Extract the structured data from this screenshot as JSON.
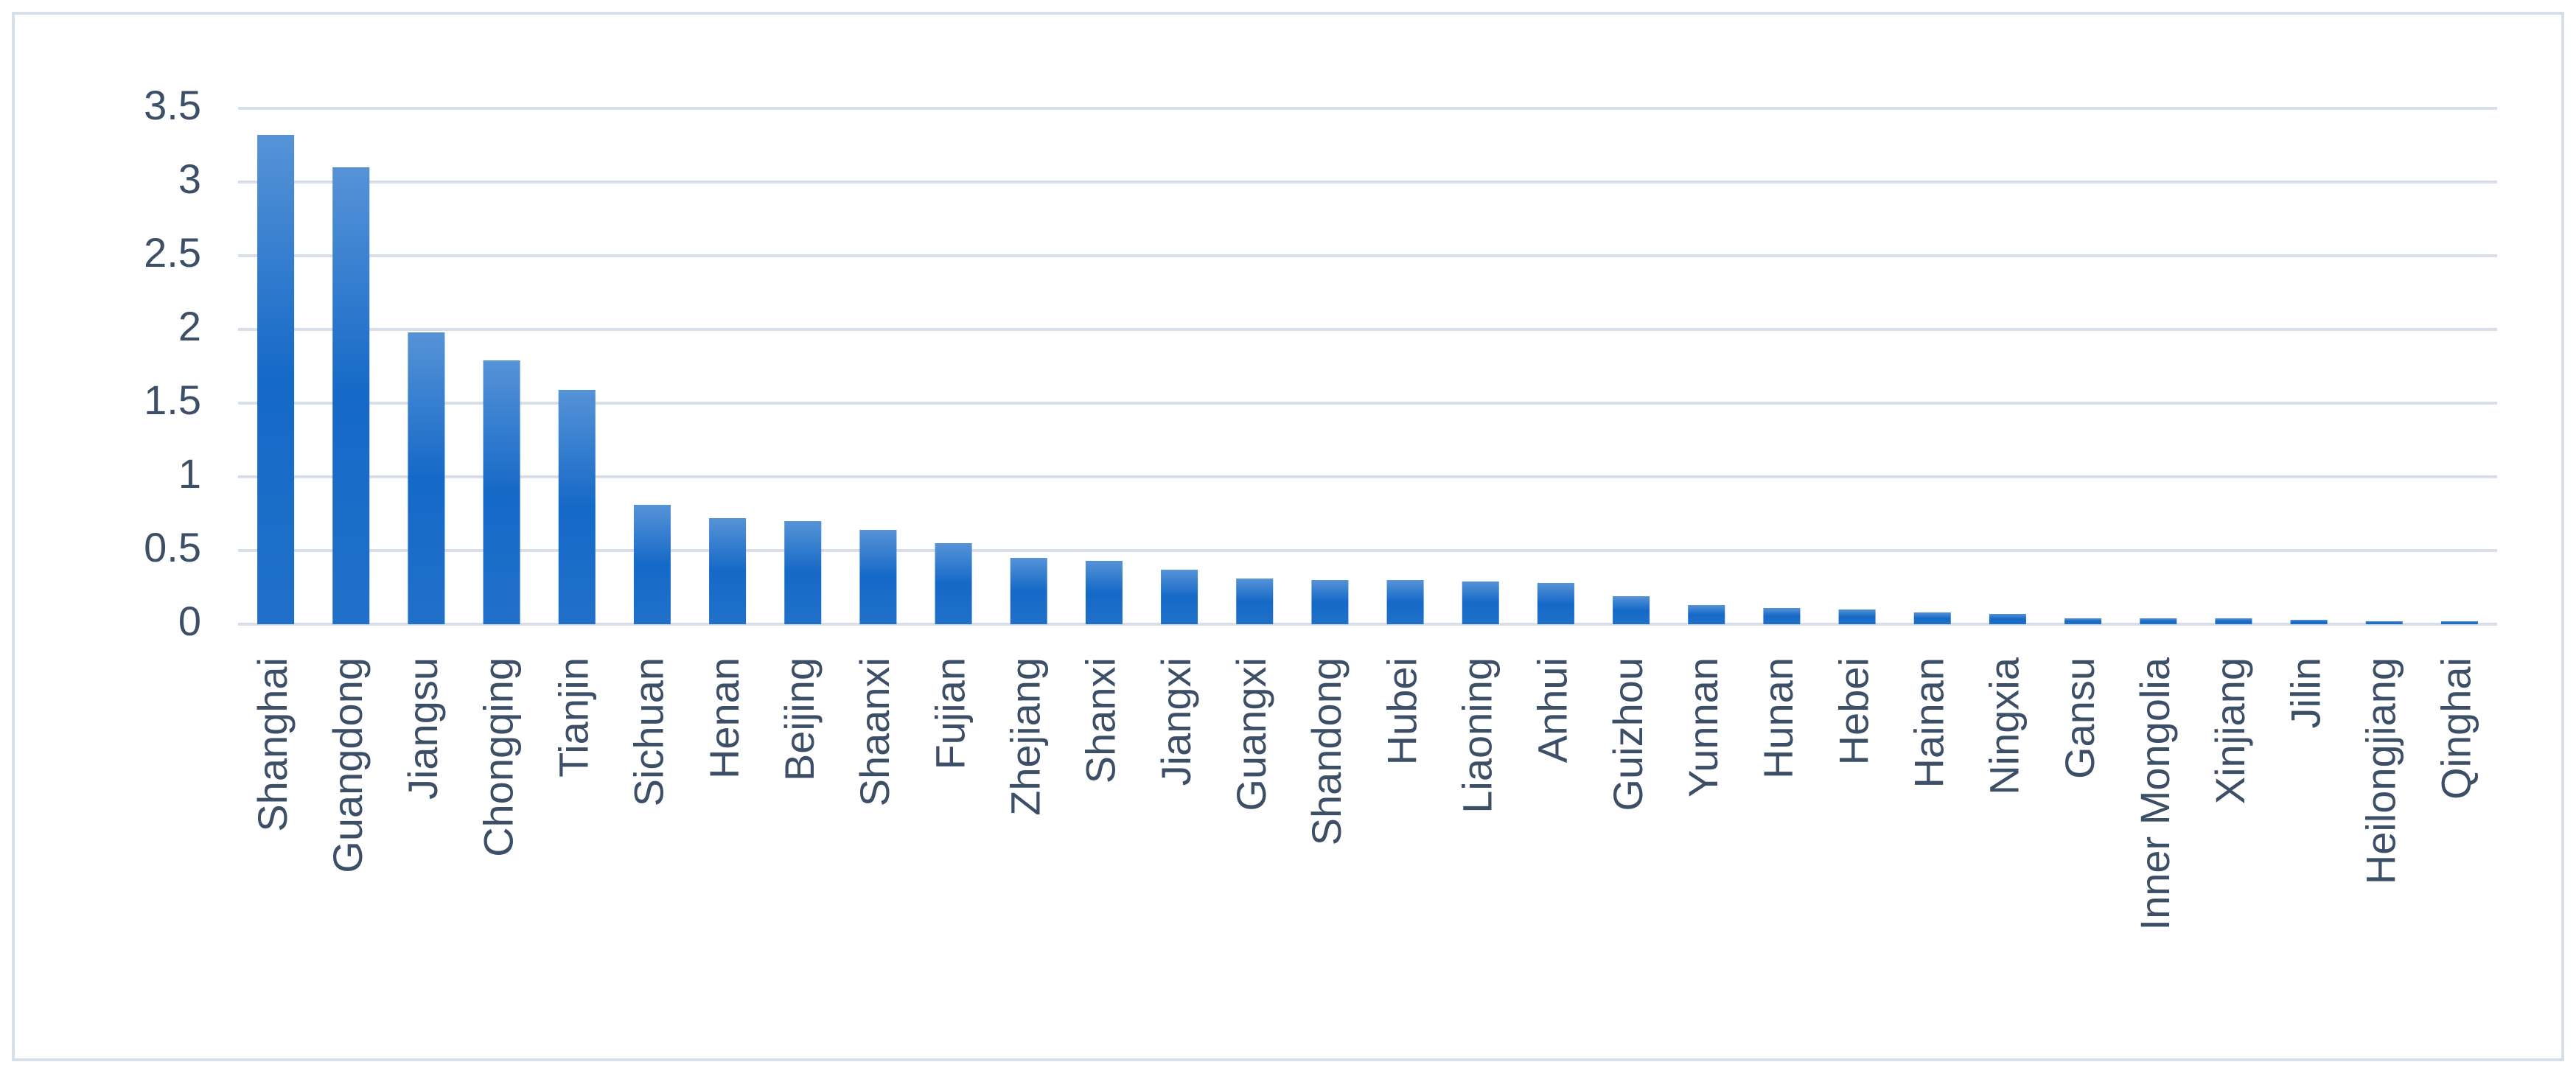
{
  "chart_data": {
    "type": "bar",
    "categories": [
      "Shanghai",
      "Guangdong",
      "Jiangsu",
      "Chongqing",
      "Tianjin",
      "Sichuan",
      "Henan",
      "Beijing",
      "Shaanxi",
      "Fujian",
      "Zhejiang",
      "Shanxi",
      "Jiangxi",
      "Guangxi",
      "Shandong",
      "Hubei",
      "Liaoning",
      "Anhui",
      "Guizhou",
      "Yunnan",
      "Hunan",
      "Hebei",
      "Hainan",
      "Ningxia",
      "Gansu",
      "Inner Mongolia",
      "Xinjiang",
      "Jilin",
      "Heilongjiang",
      "Qinghai"
    ],
    "values": [
      3.32,
      3.1,
      1.98,
      1.79,
      1.59,
      0.81,
      0.72,
      0.7,
      0.64,
      0.55,
      0.45,
      0.43,
      0.37,
      0.31,
      0.3,
      0.3,
      0.29,
      0.28,
      0.19,
      0.13,
      0.11,
      0.1,
      0.08,
      0.07,
      0.04,
      0.04,
      0.04,
      0.03,
      0.02,
      0.02
    ],
    "color": "#1569c7",
    "ylim": [
      0,
      3.5
    ],
    "yticks": [
      0,
      0.5,
      1,
      1.5,
      2,
      2.5,
      3,
      3.5
    ],
    "grid": true
  }
}
